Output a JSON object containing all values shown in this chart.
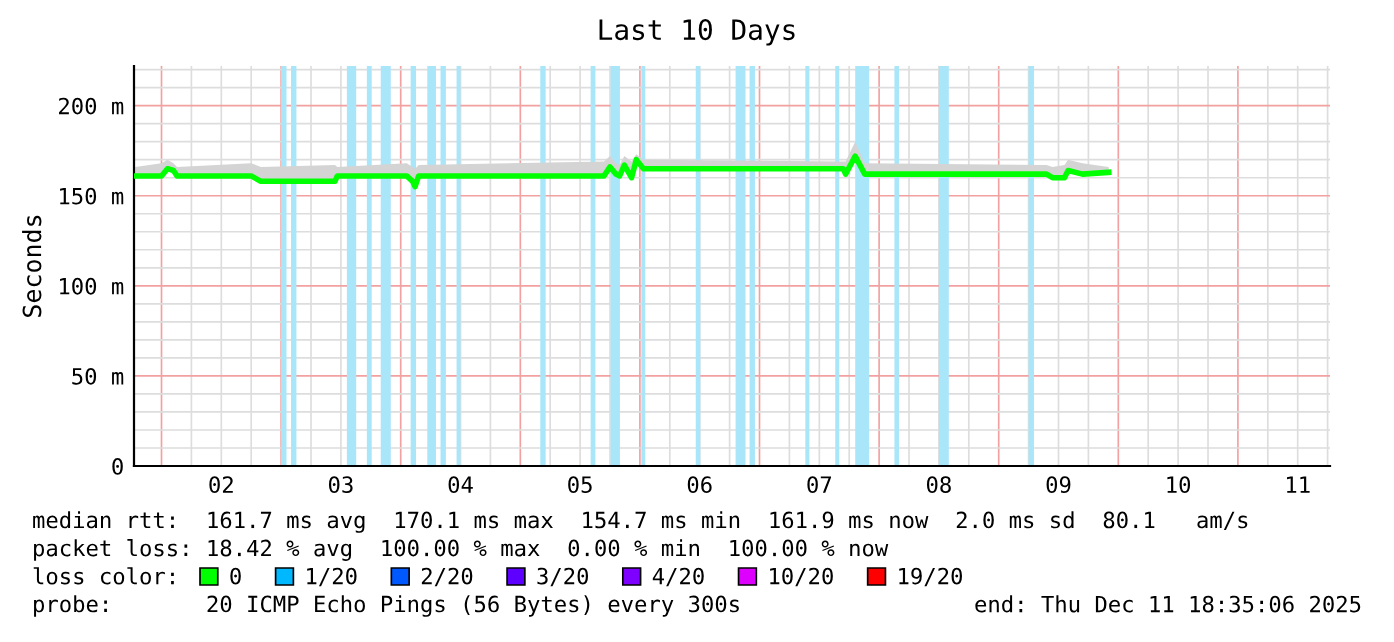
{
  "chart_data": {
    "type": "line",
    "title": "Last 10 Days",
    "ylabel": "Seconds",
    "x": [
      1.78,
      2.0,
      2.05,
      2.1,
      2.13,
      2.75,
      2.83,
      3.45,
      3.47,
      4.05,
      4.1,
      4.12,
      4.15,
      5.7,
      5.75,
      5.8,
      5.83,
      5.87,
      5.93,
      5.97,
      6.03,
      7.7,
      7.72,
      7.8,
      7.88,
      9.4,
      9.45,
      9.55,
      9.58,
      9.7,
      9.92
    ],
    "series": [
      {
        "name": "0",
        "color": "#00ff00",
        "values": [
          161,
          161,
          165,
          164,
          161,
          161,
          158,
          158,
          161,
          161,
          158,
          155,
          161,
          161,
          166,
          162,
          161,
          167,
          160,
          170,
          165,
          165,
          162,
          172,
          162,
          162,
          160,
          160,
          164,
          162,
          163
        ],
        "lower": [
          161,
          161,
          165,
          164,
          161,
          161,
          158,
          158,
          161,
          161,
          158,
          155,
          161,
          161,
          166,
          162,
          161,
          167,
          160,
          170,
          165,
          165,
          162,
          172,
          162,
          162,
          160,
          160,
          164,
          162,
          163
        ],
        "upper": [
          166,
          168,
          170,
          168,
          166,
          168,
          166,
          167,
          166,
          168,
          166,
          165,
          167,
          169,
          172,
          168,
          167,
          172,
          169,
          173,
          170,
          169,
          169,
          180,
          168,
          167,
          166,
          167,
          170,
          168,
          166
        ]
      },
      {
        "name": "1/20",
        "color": "#00b8ff",
        "values": [
          null,
          null,
          null,
          null,
          null,
          null,
          null,
          null,
          null,
          null,
          null,
          null,
          null,
          null,
          null,
          null,
          null,
          null,
          null,
          null,
          null,
          null,
          null,
          null,
          null,
          null,
          null,
          null,
          null,
          null,
          null
        ]
      },
      {
        "name": "2/20",
        "color": "#0059ff",
        "values": [
          null,
          null,
          null,
          null,
          null,
          null,
          null,
          null,
          null,
          null,
          null,
          null,
          null,
          null,
          null,
          null,
          null,
          null,
          null,
          null,
          null,
          null,
          null,
          null,
          null,
          null,
          null,
          null,
          null,
          null,
          null
        ]
      },
      {
        "name": "3/20",
        "color": "#5e00ff",
        "values": [
          null,
          null,
          null,
          null,
          null,
          null,
          null,
          null,
          null,
          null,
          null,
          null,
          null,
          null,
          null,
          null,
          null,
          null,
          null,
          null,
          null,
          null,
          null,
          null,
          null,
          null,
          null,
          null,
          null,
          null,
          null
        ]
      },
      {
        "name": "4/20",
        "color": "#7e00ff",
        "values": [
          null,
          null,
          null,
          null,
          null,
          null,
          null,
          null,
          null,
          null,
          null,
          null,
          null,
          null,
          null,
          null,
          null,
          null,
          null,
          null,
          null,
          null,
          null,
          null,
          null,
          null,
          null,
          null,
          null,
          null,
          null
        ]
      },
      {
        "name": "10/20",
        "color": "#dd00ff",
        "values": [
          null,
          null,
          null,
          null,
          null,
          null,
          null,
          null,
          null,
          null,
          null,
          null,
          null,
          null,
          null,
          null,
          null,
          null,
          null,
          null,
          null,
          null,
          null,
          null,
          null,
          null,
          null,
          null,
          null,
          null,
          null
        ]
      },
      {
        "name": "19/20",
        "color": "#ff0000",
        "values": [
          null,
          null,
          null,
          null,
          null,
          null,
          null,
          null,
          null,
          null,
          null,
          null,
          null,
          null,
          null,
          null,
          null,
          null,
          null,
          null,
          null,
          null,
          null,
          null,
          null,
          null,
          null,
          null,
          null,
          null,
          null
        ]
      }
    ],
    "xlim": [
      1.77,
      11.77
    ],
    "xticks": [
      {
        "value": 2.5,
        "label": "02"
      },
      {
        "value": 3.5,
        "label": "03"
      },
      {
        "value": 4.5,
        "label": "04"
      },
      {
        "value": 5.5,
        "label": "05"
      },
      {
        "value": 6.5,
        "label": "06"
      },
      {
        "value": 7.5,
        "label": "07"
      },
      {
        "value": 8.5,
        "label": "08"
      },
      {
        "value": 9.5,
        "label": "09"
      },
      {
        "value": 10.5,
        "label": "10"
      },
      {
        "value": 11.5,
        "label": "11"
      }
    ],
    "ylim": [
      0,
      222
    ],
    "yticks": [
      {
        "value": 0,
        "label": "0"
      },
      {
        "value": 50,
        "label": "50 m"
      },
      {
        "value": 100,
        "label": "100 m"
      },
      {
        "value": 150,
        "label": "150 m"
      },
      {
        "value": 200,
        "label": "200 m"
      }
    ],
    "bands": [
      {
        "axis": "x",
        "from": 3.0,
        "to": 3.045,
        "color": "#aae6fa"
      },
      {
        "axis": "x",
        "from": 3.083,
        "to": 3.128,
        "color": "#aae6fa"
      },
      {
        "axis": "x",
        "from": 3.55,
        "to": 3.628,
        "color": "#aae6fa"
      },
      {
        "axis": "x",
        "from": 3.717,
        "to": 3.755,
        "color": "#aae6fa"
      },
      {
        "axis": "x",
        "from": 3.833,
        "to": 3.917,
        "color": "#aae6fa"
      },
      {
        "axis": "x",
        "from": 4.083,
        "to": 4.128,
        "color": "#aae6fa"
      },
      {
        "axis": "x",
        "from": 4.222,
        "to": 4.295,
        "color": "#aae6fa"
      },
      {
        "axis": "x",
        "from": 4.333,
        "to": 4.378,
        "color": "#aae6fa"
      },
      {
        "axis": "x",
        "from": 4.467,
        "to": 4.5,
        "color": "#aae6fa"
      },
      {
        "axis": "x",
        "from": 5.167,
        "to": 5.212,
        "color": "#aae6fa"
      },
      {
        "axis": "x",
        "from": 5.588,
        "to": 5.628,
        "color": "#aae6fa"
      },
      {
        "axis": "x",
        "from": 5.755,
        "to": 5.833,
        "color": "#aae6fa"
      },
      {
        "axis": "x",
        "from": 6.012,
        "to": 6.045,
        "color": "#aae6fa"
      },
      {
        "axis": "x",
        "from": 6.467,
        "to": 6.505,
        "color": "#aae6fa"
      },
      {
        "axis": "x",
        "from": 6.8,
        "to": 6.883,
        "color": "#aae6fa"
      },
      {
        "axis": "x",
        "from": 6.917,
        "to": 6.962,
        "color": "#aae6fa"
      },
      {
        "axis": "x",
        "from": 7.383,
        "to": 7.417,
        "color": "#aae6fa"
      },
      {
        "axis": "x",
        "from": 7.633,
        "to": 7.667,
        "color": "#aae6fa"
      },
      {
        "axis": "x",
        "from": 7.8,
        "to": 7.917,
        "color": "#aae6fa"
      },
      {
        "axis": "x",
        "from": 8.128,
        "to": 8.167,
        "color": "#aae6fa"
      },
      {
        "axis": "x",
        "from": 8.5,
        "to": 8.583,
        "color": "#aae6fa"
      },
      {
        "axis": "x",
        "from": 9.25,
        "to": 9.295,
        "color": "#aae6fa"
      }
    ],
    "legend_title": "loss color:",
    "legend": "bottom",
    "grid": true,
    "annotations": [
      "median rtt:  161.7 ms avg  170.1 ms max  154.7 ms min  161.9 ms now  2.0 ms sd  80.1   am/s",
      "packet loss: 18.42 % avg  100.00 % max  0.00 % min  100.00 % now",
      "probe:       20 ICMP Echo Pings (56 Bytes) every 300s",
      "end: Thu Dec 11 18:35:06 2025"
    ]
  }
}
